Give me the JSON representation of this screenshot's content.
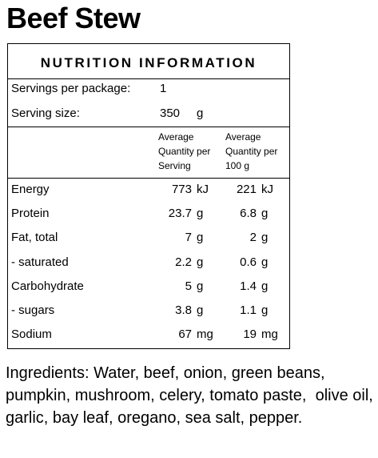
{
  "title": "Beef Stew",
  "panel": {
    "heading": "NUTRITION INFORMATION",
    "servings_per_package": {
      "label": "Servings per package:",
      "value": "1"
    },
    "serving_size": {
      "label": "Serving size:",
      "value": "350",
      "unit": "g"
    },
    "columns": [
      "Average Quantity per Serving",
      "Average Quantity per 100 g"
    ],
    "rows": [
      {
        "label": "Energy",
        "per_serving": "773",
        "per_100g": "221",
        "unit": "kJ"
      },
      {
        "label": "Protein",
        "per_serving": "23.7",
        "per_100g": "6.8",
        "unit": "g"
      },
      {
        "label": "Fat, total",
        "per_serving": "7",
        "per_100g": "2",
        "unit": "g"
      },
      {
        "label": "- saturated",
        "per_serving": "2.2",
        "per_100g": "0.6",
        "unit": "g"
      },
      {
        "label": "Carbohydrate",
        "per_serving": "5",
        "per_100g": "1.4",
        "unit": "g"
      },
      {
        "label": "- sugars",
        "per_serving": "3.8",
        "per_100g": "1.1",
        "unit": "g"
      },
      {
        "label": "Sodium",
        "per_serving": "67",
        "per_100g": "19",
        "unit": "mg"
      }
    ]
  },
  "ingredients": "Ingredients: Water, beef, onion, green beans, pumpkin, mushroom, celery, tomato paste,  olive oil, garlic, bay leaf, oregano, sea salt, pepper."
}
